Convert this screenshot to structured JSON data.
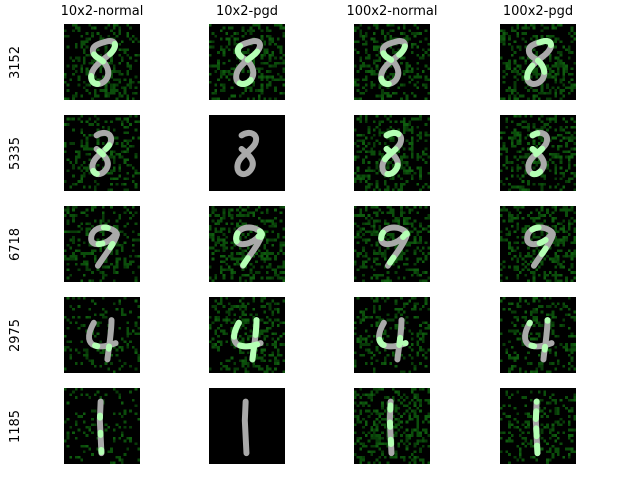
{
  "columns": [
    "10x2-normal",
    "10x2-pgd",
    "100x2-normal",
    "100x2-pgd"
  ],
  "rows": [
    {
      "label": "3152",
      "digit": "8a"
    },
    {
      "label": "5335",
      "digit": "8b"
    },
    {
      "label": "6718",
      "digit": "9"
    },
    {
      "label": "2975",
      "digit": "4"
    },
    {
      "label": "1185",
      "digit": "1"
    }
  ],
  "colors": {
    "background": "#000000",
    "digit": "#a9a9a9",
    "highlight": "#b4ffb4",
    "noise": "#0b4d0b"
  }
}
